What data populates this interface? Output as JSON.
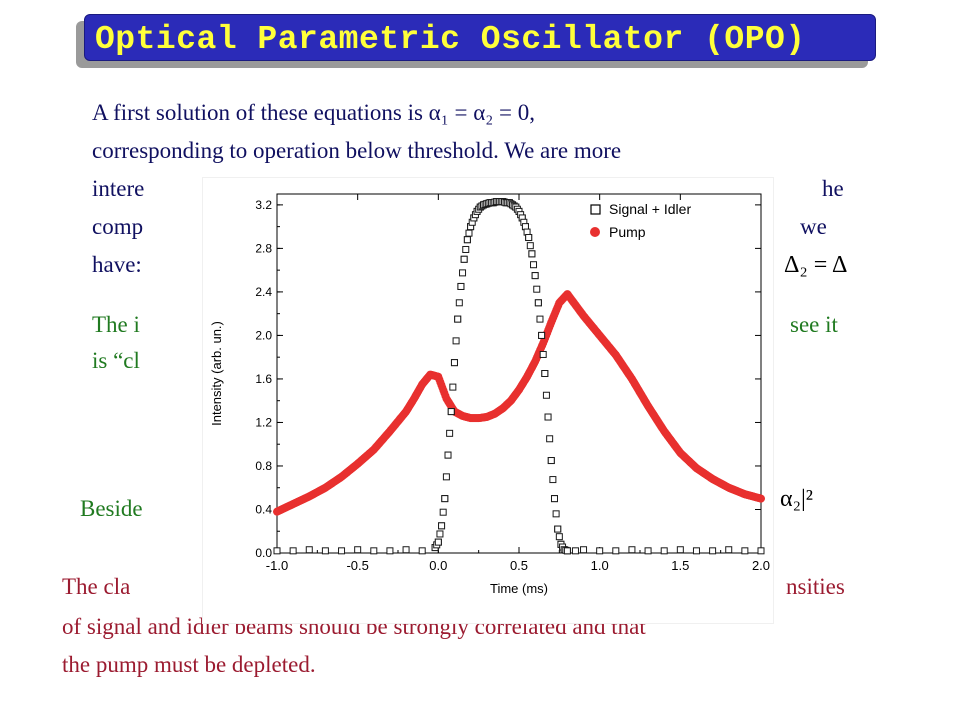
{
  "slide": {
    "title": "Optical Parametric Oscillator (OPO)",
    "para1_line1": "A first solution of these equations is α₁ = α₂ = 0,",
    "para1_line2": "corresponding to operation below threshold.  We are more",
    "para1_line3_start": "intere",
    "para1_line3_end": "he",
    "para1_line4_start": "comp",
    "para1_line4_end": "we",
    "para1_line5_start": "have:",
    "para1_line5_math": "Δ₂ = Δ",
    "green1_start": "The i",
    "green1_end": "see it",
    "green2_start": "is “cl",
    "green3_start": "Beside",
    "green3_math": "α₂|²",
    "red_line1_start": "The cla",
    "red_line1_end": "nsities",
    "red_line2": "of signal and idler beams should be strongly correlated and that",
    "red_line3": "the pump must be depleted."
  },
  "colors": {
    "signal": "#1a1a1a",
    "pump": "#e8302f",
    "title_bg": "#2b2bb8",
    "title_fg": "#ffff3a"
  },
  "chart_data": {
    "type": "scatter",
    "xlabel": "Time (ms)",
    "ylabel": "Intensity (arb. un.)",
    "xlim": [
      -1.0,
      2.0
    ],
    "ylim": [
      0.0,
      3.3
    ],
    "xticks": [
      -1.0,
      -0.5,
      0.0,
      0.5,
      1.0,
      1.5,
      2.0
    ],
    "yticks": [
      0.0,
      0.4,
      0.8,
      1.2,
      1.6,
      2.0,
      2.4,
      2.8,
      3.2
    ],
    "xtick_labels": [
      "-1.0",
      "-0.5",
      "0.0",
      "0.5",
      "1.0",
      "1.5",
      "2.0"
    ],
    "ytick_labels": [
      "0.0",
      "0.4",
      "0.8",
      "1.2",
      "1.6",
      "2.0",
      "2.4",
      "2.8",
      "3.2"
    ],
    "legend_position": "top-right",
    "series": [
      {
        "name": "Signal + Idler",
        "marker": "open-square",
        "x": [
          -1.0,
          -0.9,
          -0.8,
          -0.7,
          -0.6,
          -0.5,
          -0.4,
          -0.3,
          -0.2,
          -0.1,
          -0.02,
          0.0,
          0.02,
          0.04,
          0.06,
          0.08,
          0.1,
          0.12,
          0.14,
          0.16,
          0.18,
          0.2,
          0.22,
          0.24,
          0.26,
          0.28,
          0.3,
          0.32,
          0.34,
          0.36,
          0.38,
          0.4,
          0.42,
          0.44,
          0.46,
          0.48,
          0.5,
          0.52,
          0.54,
          0.56,
          0.58,
          0.6,
          0.62,
          0.64,
          0.66,
          0.68,
          0.7,
          0.72,
          0.74,
          0.76,
          0.78,
          0.8,
          0.85,
          0.9,
          1.0,
          1.1,
          1.2,
          1.3,
          1.4,
          1.5,
          1.6,
          1.7,
          1.8,
          1.9,
          2.0
        ],
        "y": [
          0.02,
          0.02,
          0.03,
          0.02,
          0.02,
          0.03,
          0.02,
          0.02,
          0.03,
          0.02,
          0.05,
          0.1,
          0.25,
          0.5,
          0.9,
          1.3,
          1.75,
          2.15,
          2.45,
          2.7,
          2.88,
          3.0,
          3.08,
          3.14,
          3.18,
          3.2,
          3.21,
          3.22,
          3.22,
          3.23,
          3.23,
          3.23,
          3.22,
          3.22,
          3.2,
          3.18,
          3.14,
          3.08,
          3.0,
          2.9,
          2.75,
          2.55,
          2.3,
          2.0,
          1.65,
          1.25,
          0.85,
          0.5,
          0.22,
          0.08,
          0.03,
          0.02,
          0.02,
          0.03,
          0.02,
          0.02,
          0.03,
          0.02,
          0.02,
          0.03,
          0.02,
          0.02,
          0.03,
          0.02,
          0.02
        ]
      },
      {
        "name": "Pump",
        "marker": "filled-circle",
        "x": [
          -1.0,
          -0.9,
          -0.8,
          -0.7,
          -0.6,
          -0.5,
          -0.4,
          -0.3,
          -0.2,
          -0.15,
          -0.1,
          -0.05,
          0.0,
          0.05,
          0.1,
          0.15,
          0.2,
          0.25,
          0.3,
          0.35,
          0.4,
          0.45,
          0.5,
          0.55,
          0.6,
          0.65,
          0.7,
          0.75,
          0.8,
          0.85,
          0.9,
          1.0,
          1.1,
          1.2,
          1.3,
          1.4,
          1.5,
          1.6,
          1.7,
          1.8,
          1.9,
          2.0
        ],
        "y": [
          0.38,
          0.45,
          0.52,
          0.6,
          0.7,
          0.82,
          0.95,
          1.12,
          1.3,
          1.42,
          1.55,
          1.64,
          1.62,
          1.42,
          1.3,
          1.26,
          1.24,
          1.24,
          1.25,
          1.28,
          1.33,
          1.4,
          1.5,
          1.62,
          1.76,
          1.93,
          2.12,
          2.3,
          2.38,
          2.28,
          2.18,
          2.0,
          1.82,
          1.6,
          1.35,
          1.12,
          0.92,
          0.78,
          0.68,
          0.6,
          0.54,
          0.5
        ]
      }
    ]
  }
}
